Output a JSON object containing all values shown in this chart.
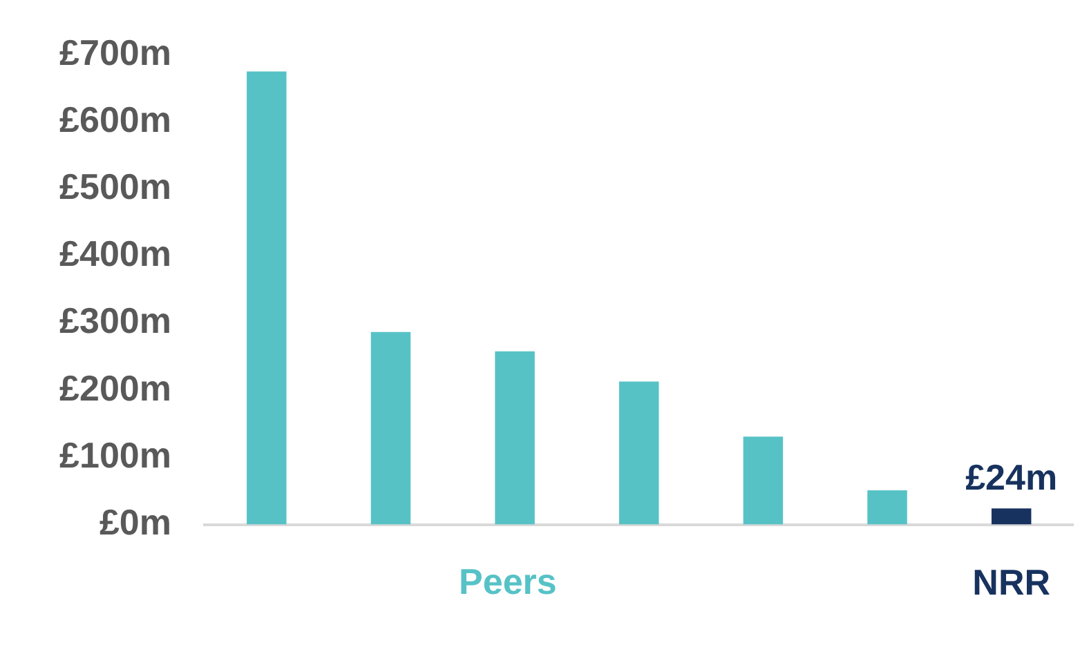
{
  "chart_data": {
    "type": "bar",
    "categories": [
      null,
      null,
      null,
      null,
      null,
      null,
      "NRR"
    ],
    "values": [
      675,
      287,
      258,
      213,
      131,
      51,
      24
    ],
    "colors": [
      "#56c2c6",
      "#56c2c6",
      "#56c2c6",
      "#56c2c6",
      "#56c2c6",
      "#56c2c6",
      "#17325e"
    ],
    "value_labels": [
      null,
      null,
      null,
      null,
      null,
      null,
      "£24m"
    ],
    "annotations": [
      "Peers"
    ],
    "ylim": [
      0,
      700
    ],
    "yticks": [
      {
        "value": 0,
        "label": "£0m"
      },
      {
        "value": 100,
        "label": "£100m"
      },
      {
        "value": 200,
        "label": "£200m"
      },
      {
        "value": 300,
        "label": "£300m"
      },
      {
        "value": 400,
        "label": "£400m"
      },
      {
        "value": 500,
        "label": "£500m"
      },
      {
        "value": 600,
        "label": "£600m"
      },
      {
        "value": 700,
        "label": "£700m"
      }
    ],
    "grid": false,
    "legend": false
  }
}
